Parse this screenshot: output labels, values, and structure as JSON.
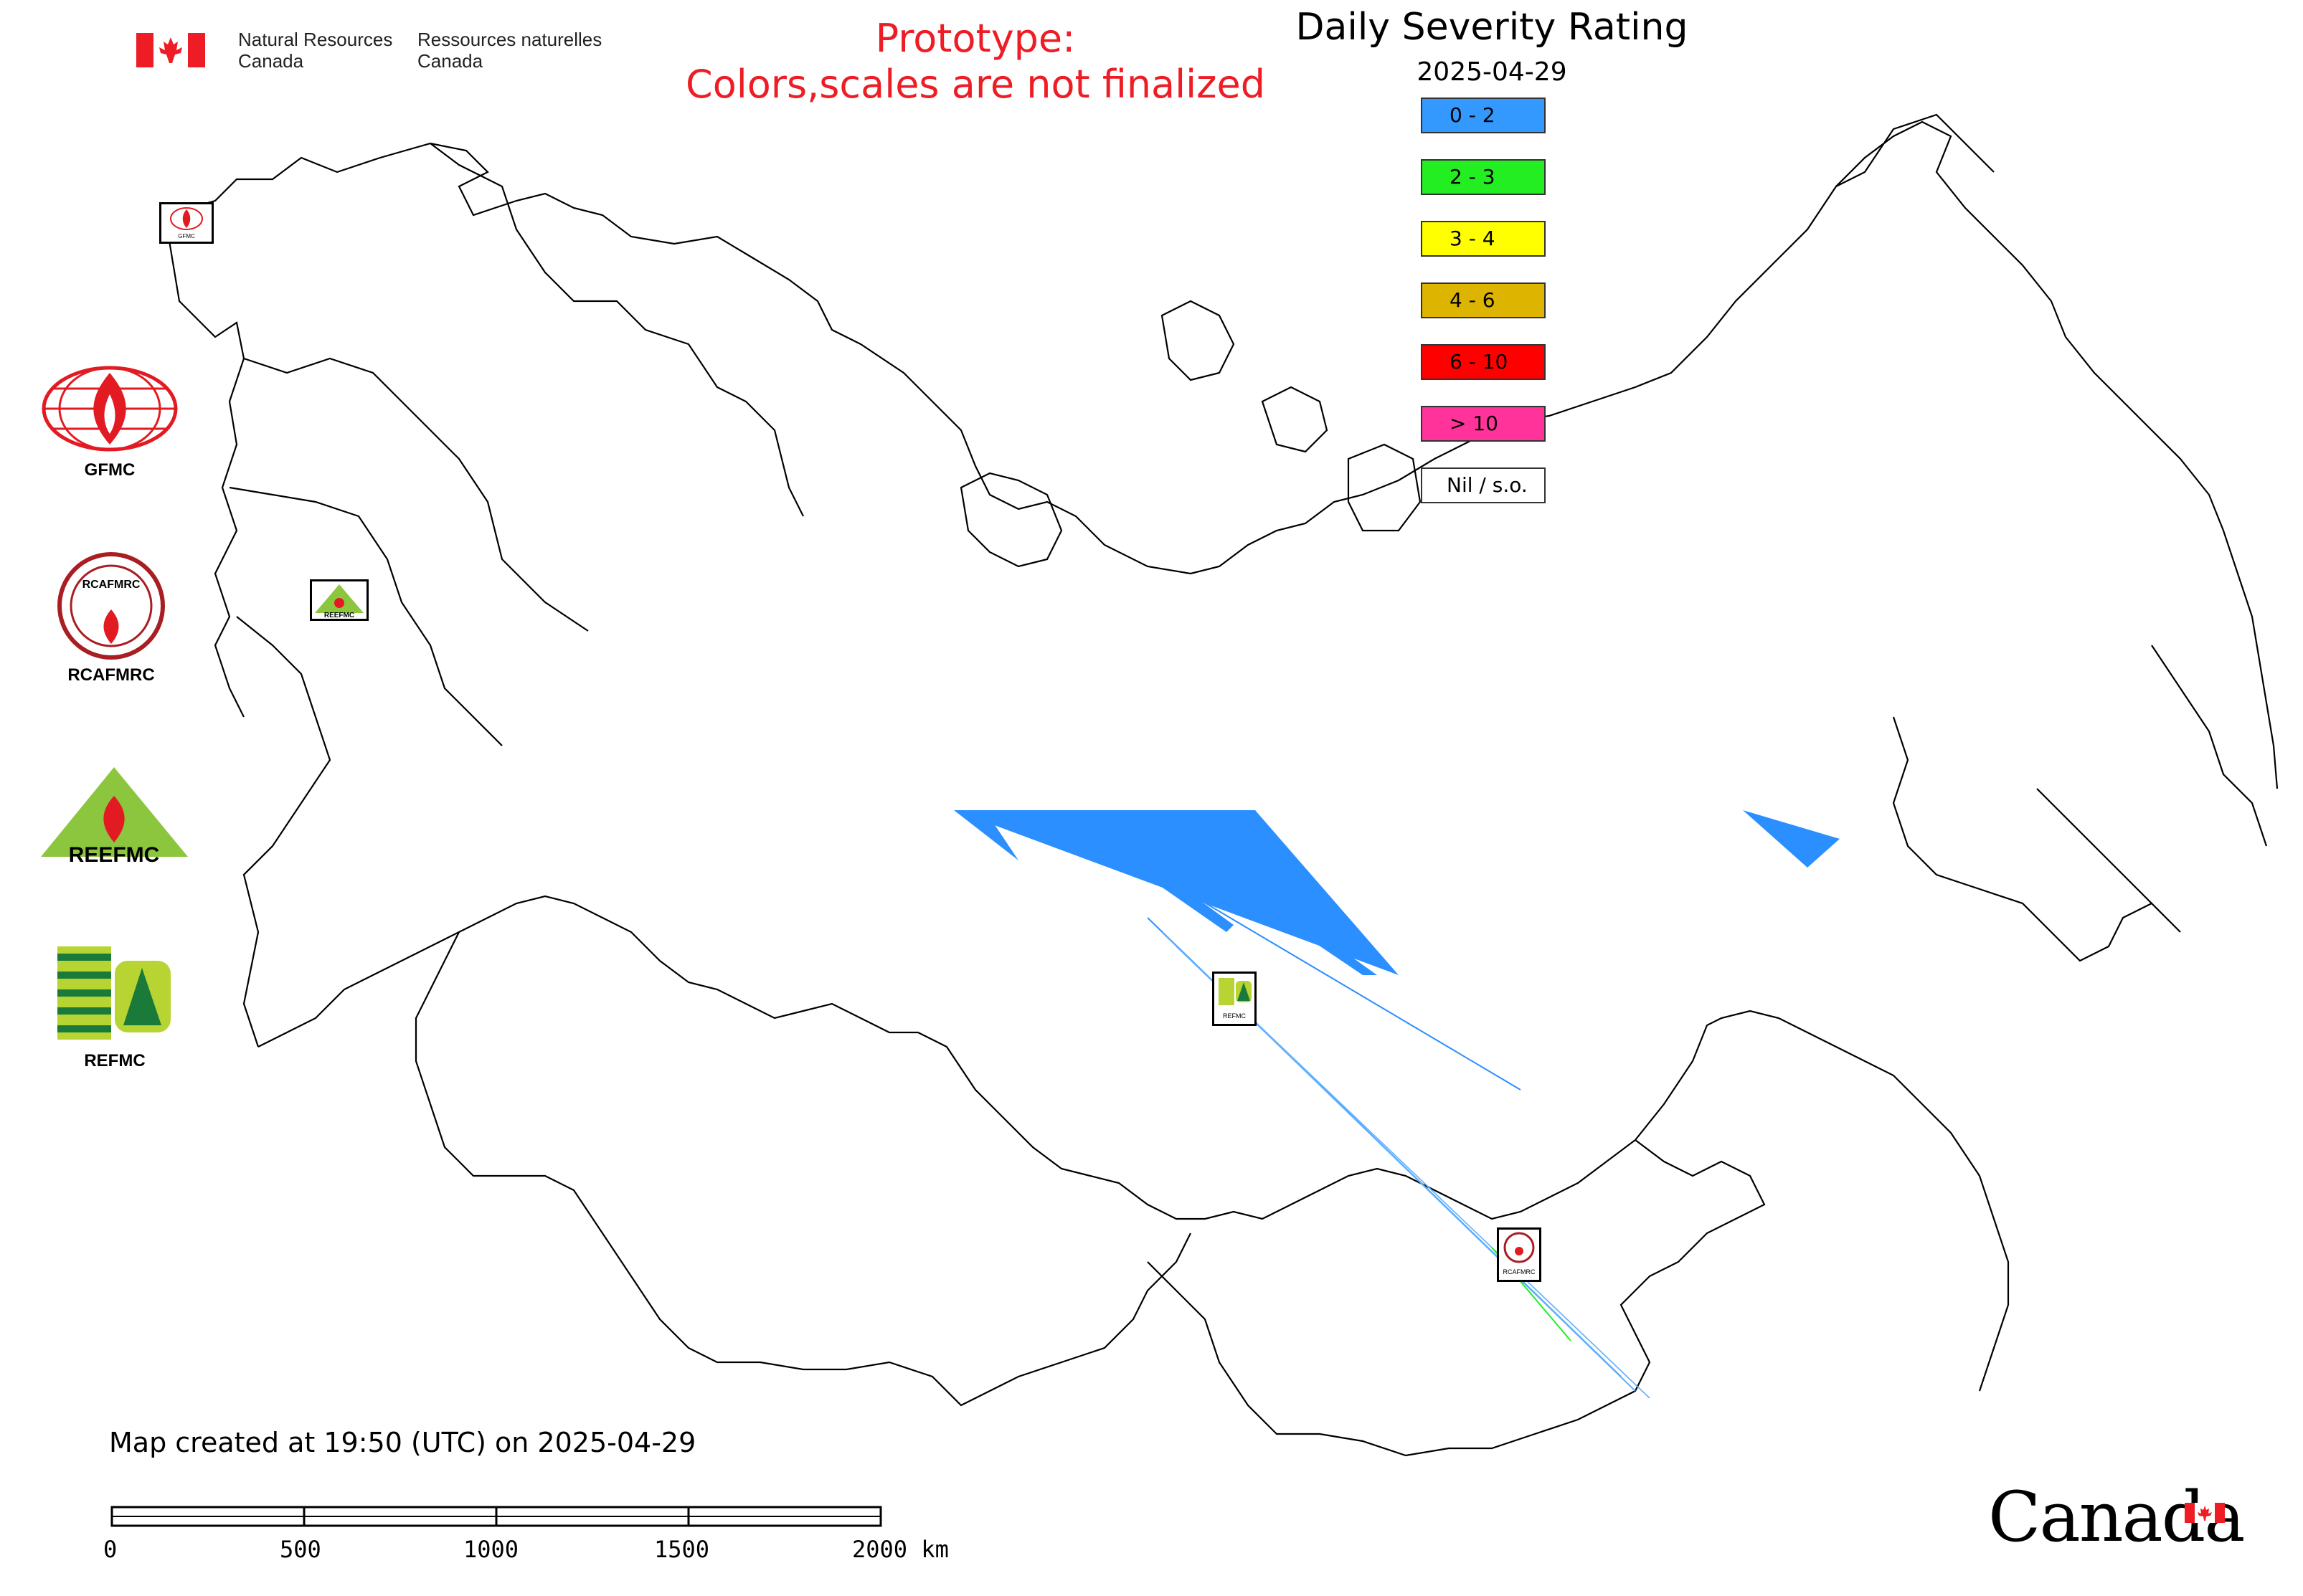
{
  "header": {
    "nrcan_en_line1": "Natural Resources",
    "nrcan_en_line2": "Canada",
    "nrcan_fr_line1": "Ressources naturelles",
    "nrcan_fr_line2": "Canada",
    "prototype_line1": "Prototype:",
    "prototype_line2": "Colors,scales are not finalized",
    "prototype_color": "#ee1c25"
  },
  "title": "Daily Severity Rating",
  "date": "2025-04-29",
  "legend": [
    {
      "label": "0 - 2",
      "color": "#3399ff"
    },
    {
      "label": "2 - 3",
      "color": "#22ee22"
    },
    {
      "label": "3 - 4",
      "color": "#ffff00"
    },
    {
      "label": "4 - 6",
      "color": "#ddb400"
    },
    {
      "label": "6 - 10",
      "color": "#ff0000"
    },
    {
      "label": "> 10",
      "color": "#ff3399"
    },
    {
      "label": "Nil / s.o.",
      "color": "#ffffff"
    }
  ],
  "orgs": [
    {
      "label": "GFMC",
      "icon": "gfmc-logo-icon"
    },
    {
      "label": "RCAFMRC",
      "icon": "rcafmrc-logo-icon"
    },
    {
      "label": "",
      "icon": "reefmc-logo-icon",
      "logo_text": "REEFMC"
    },
    {
      "label": "REFMC",
      "icon": "refmc-logo-icon"
    }
  ],
  "map_markers": [
    {
      "name": "gfmc-marker",
      "label": "GFMC"
    },
    {
      "name": "reefmc-marker",
      "label": "REEFMC"
    },
    {
      "name": "refmc-marker",
      "label": "REFMC"
    },
    {
      "name": "rcafmrc-marker",
      "label": "RCAFMRC"
    }
  ],
  "footer": {
    "created": "Map created at 19:50 (UTC) on 2025-04-29",
    "scale_labels": [
      "0",
      "500",
      "1000",
      "1500",
      "2000 km"
    ],
    "canada_wordmark": "Canada"
  }
}
